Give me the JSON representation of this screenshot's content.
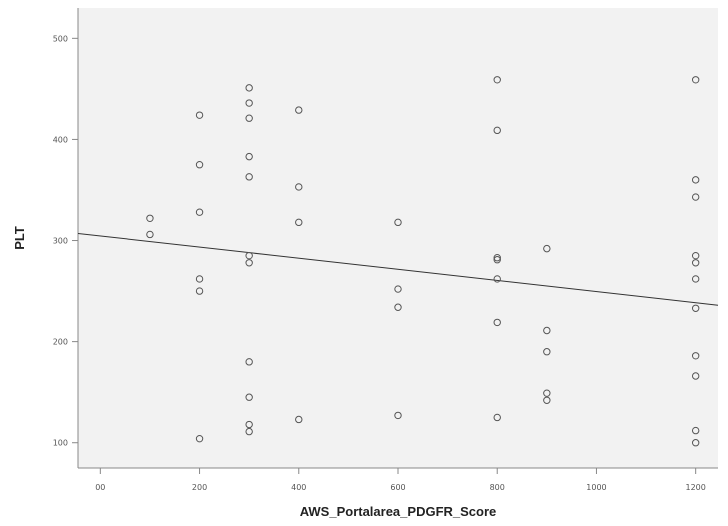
{
  "chart_data": {
    "type": "scatter",
    "title": "",
    "xlabel": "AWS_Portalarea_PDGFR_Score",
    "ylabel": "PLT",
    "xlim": [
      -45,
      1245
    ],
    "ylim": [
      75,
      530
    ],
    "x_ticks": [
      0,
      200,
      400,
      600,
      800,
      1000,
      1200
    ],
    "x_tick_labels": [
      "00",
      "200",
      "400",
      "600",
      "800",
      "1000",
      "1200"
    ],
    "y_ticks": [
      100,
      200,
      300,
      400,
      500
    ],
    "y_tick_labels": [
      "100",
      "200",
      "300",
      "400",
      "500"
    ],
    "grid": false,
    "legend": "none",
    "colors": {
      "plot_background": "#f2f2f2",
      "marker": "#555555",
      "fit_line": "#333333",
      "axis": "#888888"
    },
    "series": [
      {
        "marker": "open-circle",
        "points": [
          [
            100,
            322
          ],
          [
            100,
            306
          ],
          [
            200,
            424
          ],
          [
            200,
            375
          ],
          [
            200,
            328
          ],
          [
            200,
            262
          ],
          [
            200,
            250
          ],
          [
            200,
            104
          ],
          [
            300,
            451
          ],
          [
            300,
            436
          ],
          [
            300,
            421
          ],
          [
            300,
            383
          ],
          [
            300,
            363
          ],
          [
            300,
            285
          ],
          [
            300,
            278
          ],
          [
            300,
            180
          ],
          [
            300,
            145
          ],
          [
            300,
            118
          ],
          [
            300,
            111
          ],
          [
            400,
            429
          ],
          [
            400,
            353
          ],
          [
            400,
            318
          ],
          [
            400,
            123
          ],
          [
            600,
            318
          ],
          [
            600,
            252
          ],
          [
            600,
            234
          ],
          [
            600,
            127
          ],
          [
            800,
            459
          ],
          [
            800,
            409
          ],
          [
            800,
            283
          ],
          [
            800,
            281
          ],
          [
            800,
            262
          ],
          [
            800,
            219
          ],
          [
            800,
            125
          ],
          [
            900,
            292
          ],
          [
            900,
            211
          ],
          [
            900,
            190
          ],
          [
            900,
            149
          ],
          [
            900,
            142
          ],
          [
            1200,
            459
          ],
          [
            1200,
            360
          ],
          [
            1200,
            343
          ],
          [
            1200,
            285
          ],
          [
            1200,
            278
          ],
          [
            1200,
            262
          ],
          [
            1200,
            233
          ],
          [
            1200,
            186
          ],
          [
            1200,
            166
          ],
          [
            1200,
            112
          ],
          [
            1200,
            100
          ]
        ]
      }
    ],
    "fit_line": {
      "type": "linear",
      "points": [
        [
          -45,
          307
        ],
        [
          1245,
          236
        ]
      ]
    }
  }
}
